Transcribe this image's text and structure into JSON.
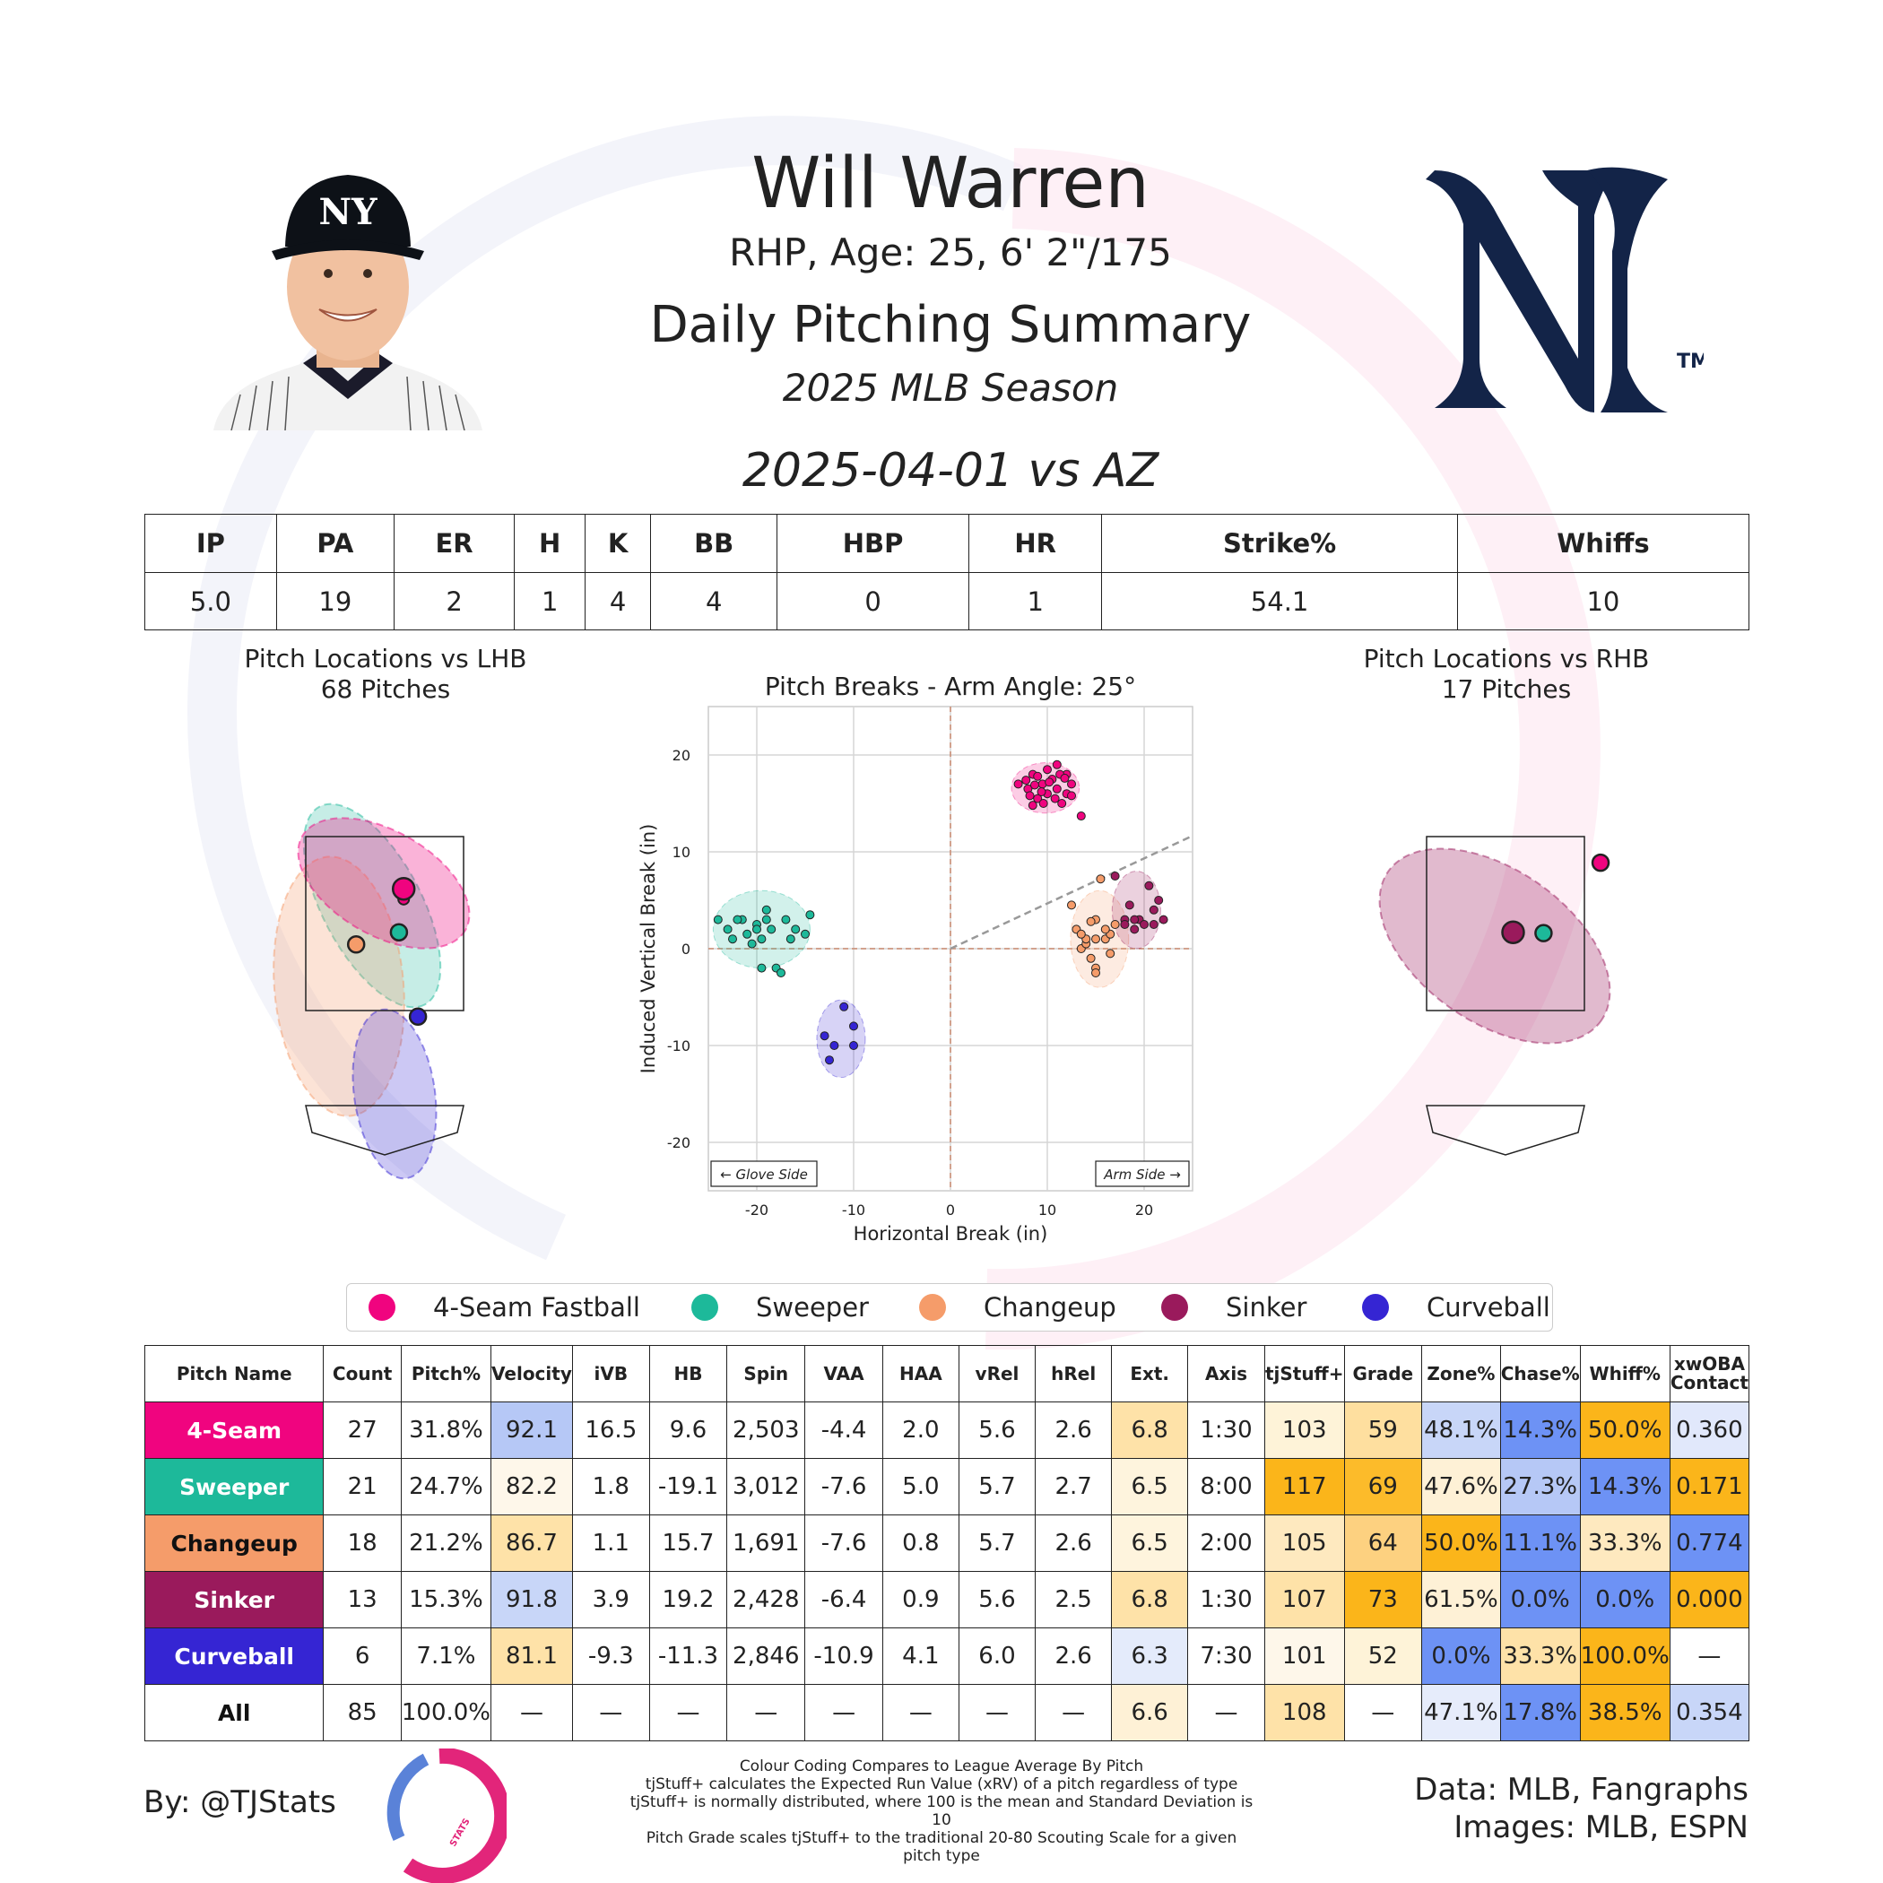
{
  "header": {
    "player_name": "Will Warren",
    "bio": "RHP, Age: 25, 6' 2\"/175",
    "title": "Daily Pitching Summary",
    "season": "2025 MLB Season",
    "game": "2025-04-01 vs AZ"
  },
  "images": {
    "headshot": "player-headshot",
    "team_logo": "ny-yankees-logo",
    "tm": "TM"
  },
  "summary": {
    "headers": [
      "IP",
      "PA",
      "ER",
      "H",
      "K",
      "BB",
      "HBP",
      "HR",
      "Strike%",
      "Whiffs"
    ],
    "values": [
      "5.0",
      "19",
      "2",
      "1",
      "4",
      "4",
      "0",
      "1",
      "54.1",
      "10"
    ]
  },
  "plots": {
    "lhb_title": "Pitch Locations vs LHB",
    "lhb_sub": "68 Pitches",
    "rhb_title": "Pitch Locations vs RHB",
    "rhb_sub": "17 Pitches"
  },
  "legend": [
    {
      "label": "4-Seam Fastball",
      "color": "#f0047f"
    },
    {
      "label": "Sweeper",
      "color": "#1db99a"
    },
    {
      "label": "Changeup",
      "color": "#f59c6a"
    },
    {
      "label": "Sinker",
      "color": "#9a1a5c"
    },
    {
      "label": "Curveball",
      "color": "#3525d3"
    }
  ],
  "pitch_table": {
    "headers": [
      "Pitch Name",
      "Count",
      "Pitch%",
      "Velocity",
      "iVB",
      "HB",
      "Spin",
      "VAA",
      "HAA",
      "vRel",
      "hRel",
      "Ext.",
      "Axis",
      "tjStuff+",
      "Grade",
      "Zone%",
      "Chase%",
      "Whiff%",
      "xwOBA Contact"
    ],
    "rows": [
      {
        "name": "4-Seam",
        "color": "#f0047f",
        "text": "#ffffff",
        "cells": [
          "27",
          "31.8%",
          "92.1",
          "16.5",
          "9.6",
          "2,503",
          "-4.4",
          "2.0",
          "5.6",
          "2.6",
          "6.8",
          "1:30",
          "103",
          "59",
          "48.1%",
          "14.3%",
          "50.0%",
          "0.360"
        ],
        "bg": [
          "#fff",
          "#fff",
          "#b6c8f6",
          "#fff",
          "#fff",
          "#fff",
          "#fff",
          "#fff",
          "#fff",
          "#fff",
          "#fee2a8",
          "#fff",
          "#fef3d8",
          "#fedf9f",
          "#c8d6f8",
          "#6d92f5",
          "#fbb51a",
          "#e1e8fb"
        ]
      },
      {
        "name": "Sweeper",
        "color": "#1db99a",
        "text": "#ffffff",
        "cells": [
          "21",
          "24.7%",
          "82.2",
          "1.8",
          "-19.1",
          "3,012",
          "-7.6",
          "5.0",
          "5.7",
          "2.7",
          "6.5",
          "8:00",
          "117",
          "69",
          "47.6%",
          "27.3%",
          "14.3%",
          "0.171"
        ],
        "bg": [
          "#fff",
          "#fff",
          "#fef7ea",
          "#fff",
          "#fff",
          "#fff",
          "#fff",
          "#fff",
          "#fff",
          "#fff",
          "#fef4dd",
          "#fff",
          "#fbb51a",
          "#fcbb2a",
          "#fef1d6",
          "#b6c8f6",
          "#6d92f5",
          "#fbb51a"
        ]
      },
      {
        "name": "Changeup",
        "color": "#f59c6a",
        "text": "#111111",
        "cells": [
          "18",
          "21.2%",
          "86.7",
          "1.1",
          "15.7",
          "1,691",
          "-7.6",
          "0.8",
          "5.7",
          "2.6",
          "6.5",
          "2:00",
          "105",
          "64",
          "50.0%",
          "11.1%",
          "33.3%",
          "0.774"
        ],
        "bg": [
          "#fff",
          "#fff",
          "#fee2a8",
          "#fff",
          "#fff",
          "#fff",
          "#fff",
          "#fff",
          "#fff",
          "#fff",
          "#fef4dd",
          "#fff",
          "#fee9bf",
          "#fdd180",
          "#fbb51a",
          "#6d92f5",
          "#fee9bf",
          "#6d92f5"
        ]
      },
      {
        "name": "Sinker",
        "color": "#9a1a5c",
        "text": "#ffffff",
        "cells": [
          "13",
          "15.3%",
          "91.8",
          "3.9",
          "19.2",
          "2,428",
          "-6.4",
          "0.9",
          "5.6",
          "2.5",
          "6.8",
          "1:30",
          "107",
          "73",
          "61.5%",
          "0.0%",
          "0.0%",
          "0.000"
        ],
        "bg": [
          "#fff",
          "#fff",
          "#c8d6f8",
          "#fff",
          "#fff",
          "#fff",
          "#fff",
          "#fff",
          "#fff",
          "#fff",
          "#fee2a8",
          "#fff",
          "#fee2a8",
          "#fbb51a",
          "#fef1d6",
          "#6d92f5",
          "#6d92f5",
          "#fbb51a"
        ]
      },
      {
        "name": "Curveball",
        "color": "#3525d3",
        "text": "#ffffff",
        "cells": [
          "6",
          "7.1%",
          "81.1",
          "-9.3",
          "-11.3",
          "2,846",
          "-10.9",
          "4.1",
          "6.0",
          "2.6",
          "6.3",
          "7:30",
          "101",
          "52",
          "0.0%",
          "33.3%",
          "100.0%",
          "—"
        ],
        "bg": [
          "#fff",
          "#fff",
          "#fee2a8",
          "#fff",
          "#fff",
          "#fff",
          "#fff",
          "#fff",
          "#fff",
          "#fff",
          "#e4ebfb",
          "#fff",
          "#fef7ea",
          "#fef3d8",
          "#6d92f5",
          "#fee2a8",
          "#fbb51a",
          "#fff"
        ]
      },
      {
        "name": "All",
        "color": "#ffffff",
        "text": "#111111",
        "cells": [
          "85",
          "100.0%",
          "—",
          "—",
          "—",
          "—",
          "—",
          "—",
          "—",
          "—",
          "6.6",
          "—",
          "108",
          "—",
          "47.1%",
          "17.8%",
          "38.5%",
          "0.354"
        ],
        "bg": [
          "#fff",
          "#fff",
          "#fff",
          "#fff",
          "#fff",
          "#fff",
          "#fff",
          "#fff",
          "#fff",
          "#fff",
          "#fef1d6",
          "#fff",
          "#fee2a8",
          "#fff",
          "#e6ecfb",
          "#6d92f5",
          "#fbb51a",
          "#c8d6f8"
        ]
      }
    ]
  },
  "chart_data": [
    {
      "type": "scatter",
      "title": "Pitch Breaks - Arm Angle: 25°",
      "xlabel": "Horizontal Break (in)",
      "ylabel": "Induced Vertical Break (in)",
      "xlim": [
        -25,
        25
      ],
      "ylim": [
        -25,
        25
      ],
      "xticks": [
        -20,
        -10,
        0,
        10,
        20
      ],
      "yticks": [
        20,
        10,
        0,
        -10,
        -20
      ],
      "grid": true,
      "glove_side_label": "← Glove Side",
      "arm_side_label": "Arm Side →",
      "arm_angle_deg": 25,
      "series": [
        {
          "name": "4-Seam Fastball",
          "color": "#f0047f",
          "ellipse": {
            "cx": 9.8,
            "cy": 16.6,
            "rx": 3.5,
            "ry": 2.6
          },
          "points": [
            [
              7,
              17
            ],
            [
              8,
              16.5
            ],
            [
              8.5,
              18
            ],
            [
              9,
              15.5
            ],
            [
              9.5,
              17
            ],
            [
              10,
              16
            ],
            [
              10,
              18.5
            ],
            [
              10.5,
              17.5
            ],
            [
              11,
              19
            ],
            [
              11,
              16.5
            ],
            [
              11.5,
              15
            ],
            [
              12,
              18
            ],
            [
              12.5,
              17
            ],
            [
              9,
              17.8
            ],
            [
              8.2,
              15.8
            ],
            [
              10.8,
              15.5
            ],
            [
              9.4,
              16.2
            ],
            [
              7.8,
              17.4
            ],
            [
              12,
              16
            ],
            [
              11.3,
              18
            ],
            [
              13.5,
              13.7
            ],
            [
              8.7,
              16.9
            ],
            [
              10.2,
              17.2
            ],
            [
              9.6,
              15
            ],
            [
              11.8,
              17.6
            ],
            [
              8.5,
              14.8
            ],
            [
              12.5,
              15.8
            ]
          ]
        },
        {
          "name": "Sweeper",
          "color": "#1db99a",
          "ellipse": {
            "cx": -19.5,
            "cy": 2,
            "rx": 5,
            "ry": 4
          },
          "points": [
            [
              -24,
              3
            ],
            [
              -23,
              2
            ],
            [
              -22.5,
              1
            ],
            [
              -21.5,
              3
            ],
            [
              -21,
              1.5
            ],
            [
              -20.5,
              0.5
            ],
            [
              -20,
              2.5
            ],
            [
              -19.5,
              1
            ],
            [
              -19,
              4
            ],
            [
              -19,
              3
            ],
            [
              -18.5,
              2
            ],
            [
              -18,
              -2
            ],
            [
              -17.5,
              -2.5
            ],
            [
              -17,
              3
            ],
            [
              -16.5,
              1
            ],
            [
              -16,
              2
            ],
            [
              -15,
              1.5
            ],
            [
              -14.5,
              3.5
            ],
            [
              -19.5,
              -2
            ],
            [
              -20,
              2
            ],
            [
              -22,
              3
            ]
          ]
        },
        {
          "name": "Changeup",
          "color": "#f59c6a",
          "ellipse": {
            "cx": 15.4,
            "cy": 1,
            "rx": 3,
            "ry": 5
          },
          "points": [
            [
              13,
              2
            ],
            [
              13.5,
              0
            ],
            [
              14,
              0.5
            ],
            [
              14.5,
              -1
            ],
            [
              15,
              1
            ],
            [
              15,
              -2
            ],
            [
              15.5,
              7.2
            ],
            [
              16,
              1
            ],
            [
              16.5,
              1.5
            ],
            [
              17,
              2.5
            ],
            [
              15,
              -2.5
            ],
            [
              14,
              1
            ],
            [
              13.5,
              1.5
            ],
            [
              16.5,
              -0.5
            ],
            [
              12.5,
              4.5
            ],
            [
              16,
              2
            ],
            [
              15,
              3
            ],
            [
              14.5,
              2.8
            ]
          ]
        },
        {
          "name": "Sinker",
          "color": "#9a1a5c",
          "ellipse": {
            "cx": 19.2,
            "cy": 4,
            "rx": 2.5,
            "ry": 4
          },
          "points": [
            [
              17,
              7.5
            ],
            [
              18,
              3
            ],
            [
              18.5,
              4.5
            ],
            [
              19,
              2
            ],
            [
              19.5,
              3
            ],
            [
              20,
              2.5
            ],
            [
              20.5,
              6.5
            ],
            [
              21,
              4
            ],
            [
              21,
              2.5
            ],
            [
              22,
              3
            ],
            [
              21.5,
              5
            ],
            [
              19,
              3
            ],
            [
              18,
              2.5
            ]
          ]
        },
        {
          "name": "Curveball",
          "color": "#3525d3",
          "ellipse": {
            "cx": -11.3,
            "cy": -9.3,
            "rx": 2.5,
            "ry": 4
          },
          "points": [
            [
              -13,
              -9
            ],
            [
              -12.5,
              -11.5
            ],
            [
              -12,
              -10
            ],
            [
              -11,
              -6
            ],
            [
              -10,
              -10
            ],
            [
              -10,
              -8
            ]
          ]
        }
      ]
    },
    {
      "type": "scatter",
      "title": "Pitch Locations vs LHB",
      "subtitle": "68 Pitches",
      "grid": false,
      "series": [
        {
          "name": "4-Seam Fastball",
          "color": "#f0047f",
          "average": [
            0.2,
            2.9
          ],
          "avg_size": "large",
          "extra_point": [
            0.2,
            2.78
          ]
        },
        {
          "name": "Sweeper",
          "color": "#1db99a",
          "average": [
            0.15,
            2.4
          ]
        },
        {
          "name": "Changeup",
          "color": "#f59c6a",
          "average": [
            -0.3,
            2.26
          ]
        },
        {
          "name": "Curveball",
          "color": "#3525d3",
          "average": [
            0.35,
            1.43
          ]
        }
      ]
    },
    {
      "type": "scatter",
      "title": "Pitch Locations vs RHB",
      "subtitle": "17 Pitches",
      "grid": false,
      "series": [
        {
          "name": "4-Seam Fastball",
          "color": "#f0047f",
          "average": [
            1.0,
            3.2
          ]
        },
        {
          "name": "Sinker",
          "color": "#9a1a5c",
          "average": [
            0.08,
            2.4
          ],
          "avg_size": "large"
        },
        {
          "name": "Sweeper",
          "color": "#1db99a",
          "average": [
            0.4,
            2.39
          ]
        }
      ]
    }
  ],
  "footer": {
    "by": "By: @TJStats",
    "logo_text": "STATS",
    "notes": [
      "Colour Coding Compares to League Average By Pitch",
      "tjStuff+ calculates the Expected Run Value (xRV) of a pitch regardless of type",
      "tjStuff+ is normally distributed, where 100 is the mean and Standard Deviation is 10",
      "Pitch Grade scales tjStuff+ to the traditional 20-80 Scouting Scale for a given pitch type"
    ],
    "data_src": "Data: MLB, Fangraphs",
    "images_src": "Images: MLB, ESPN"
  }
}
